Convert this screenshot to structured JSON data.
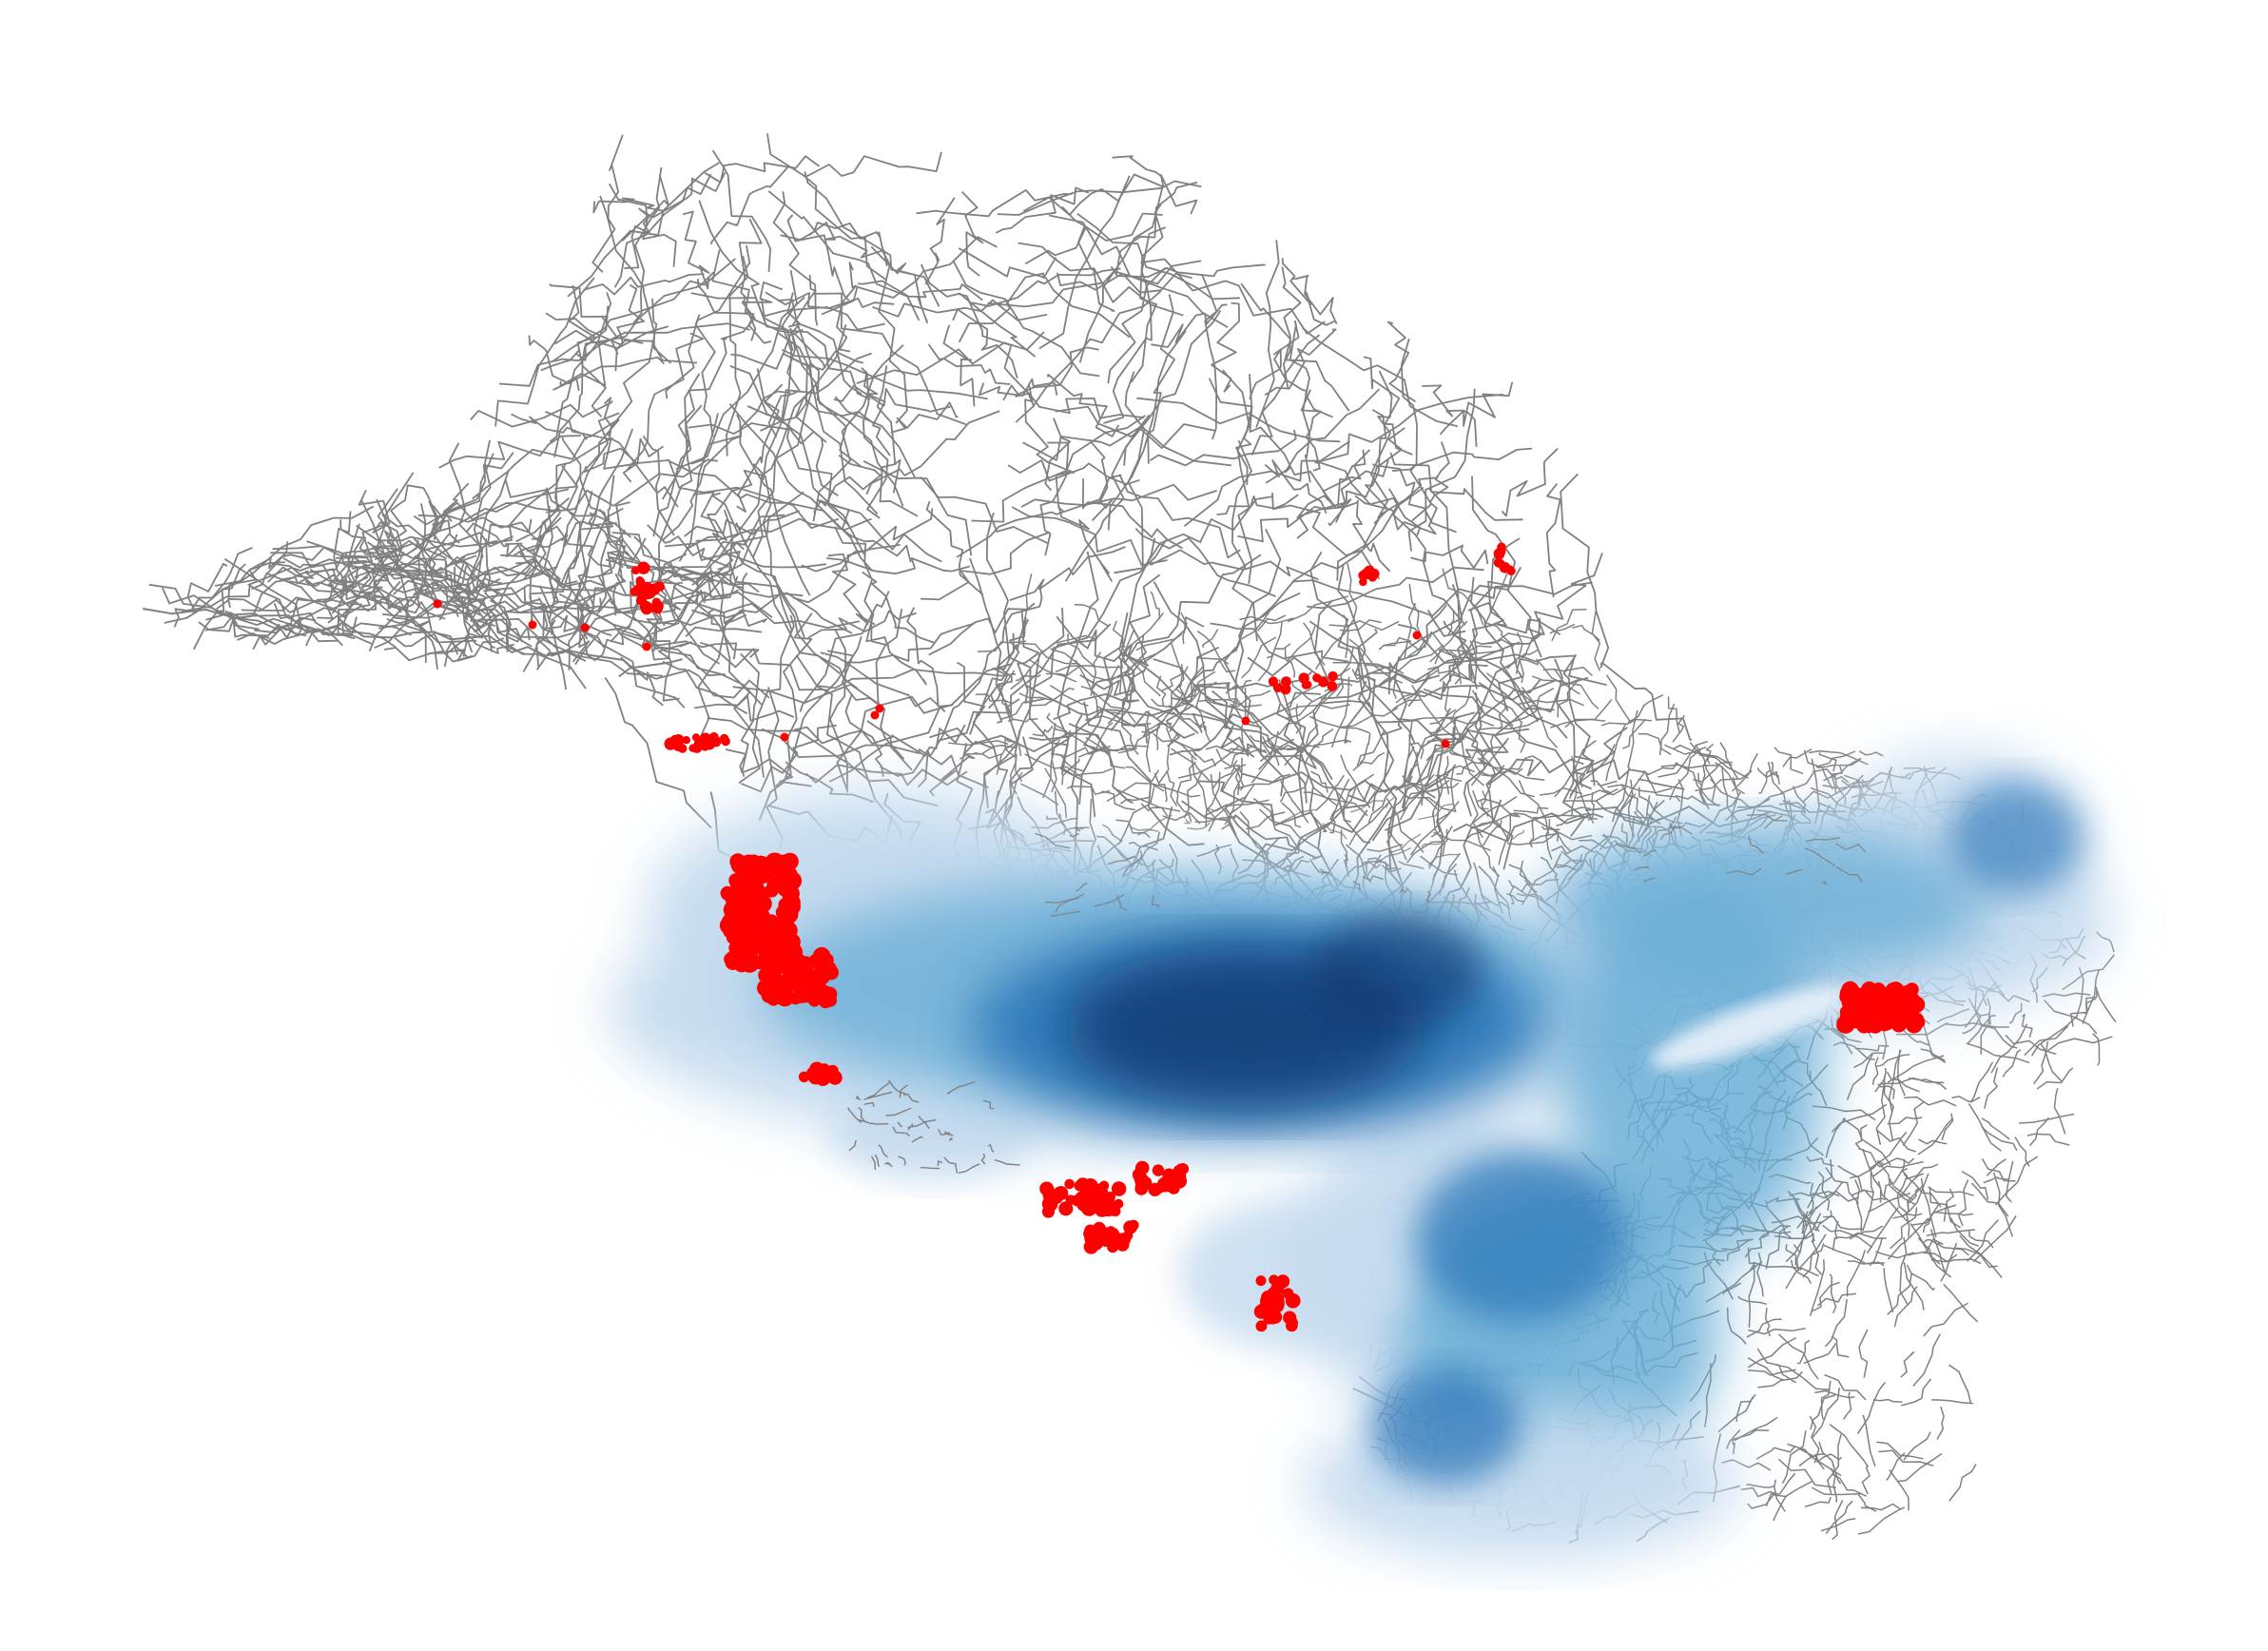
{
  "map": {
    "colors": {
      "background": "#ffffff",
      "road": "#808080",
      "density_light": "#c6dbef",
      "density_mid": "#6baed6",
      "density_strong": "#2171b5",
      "density_dark": "#08306b",
      "hotspot": "#ff0000"
    },
    "layers": [
      {
        "name": "road-network",
        "kind": "lines",
        "color": "#808080"
      },
      {
        "name": "density-surface",
        "kind": "heat",
        "palette": "Blues"
      },
      {
        "name": "hotspot-points",
        "kind": "points",
        "color": "#ff0000"
      }
    ]
  }
}
